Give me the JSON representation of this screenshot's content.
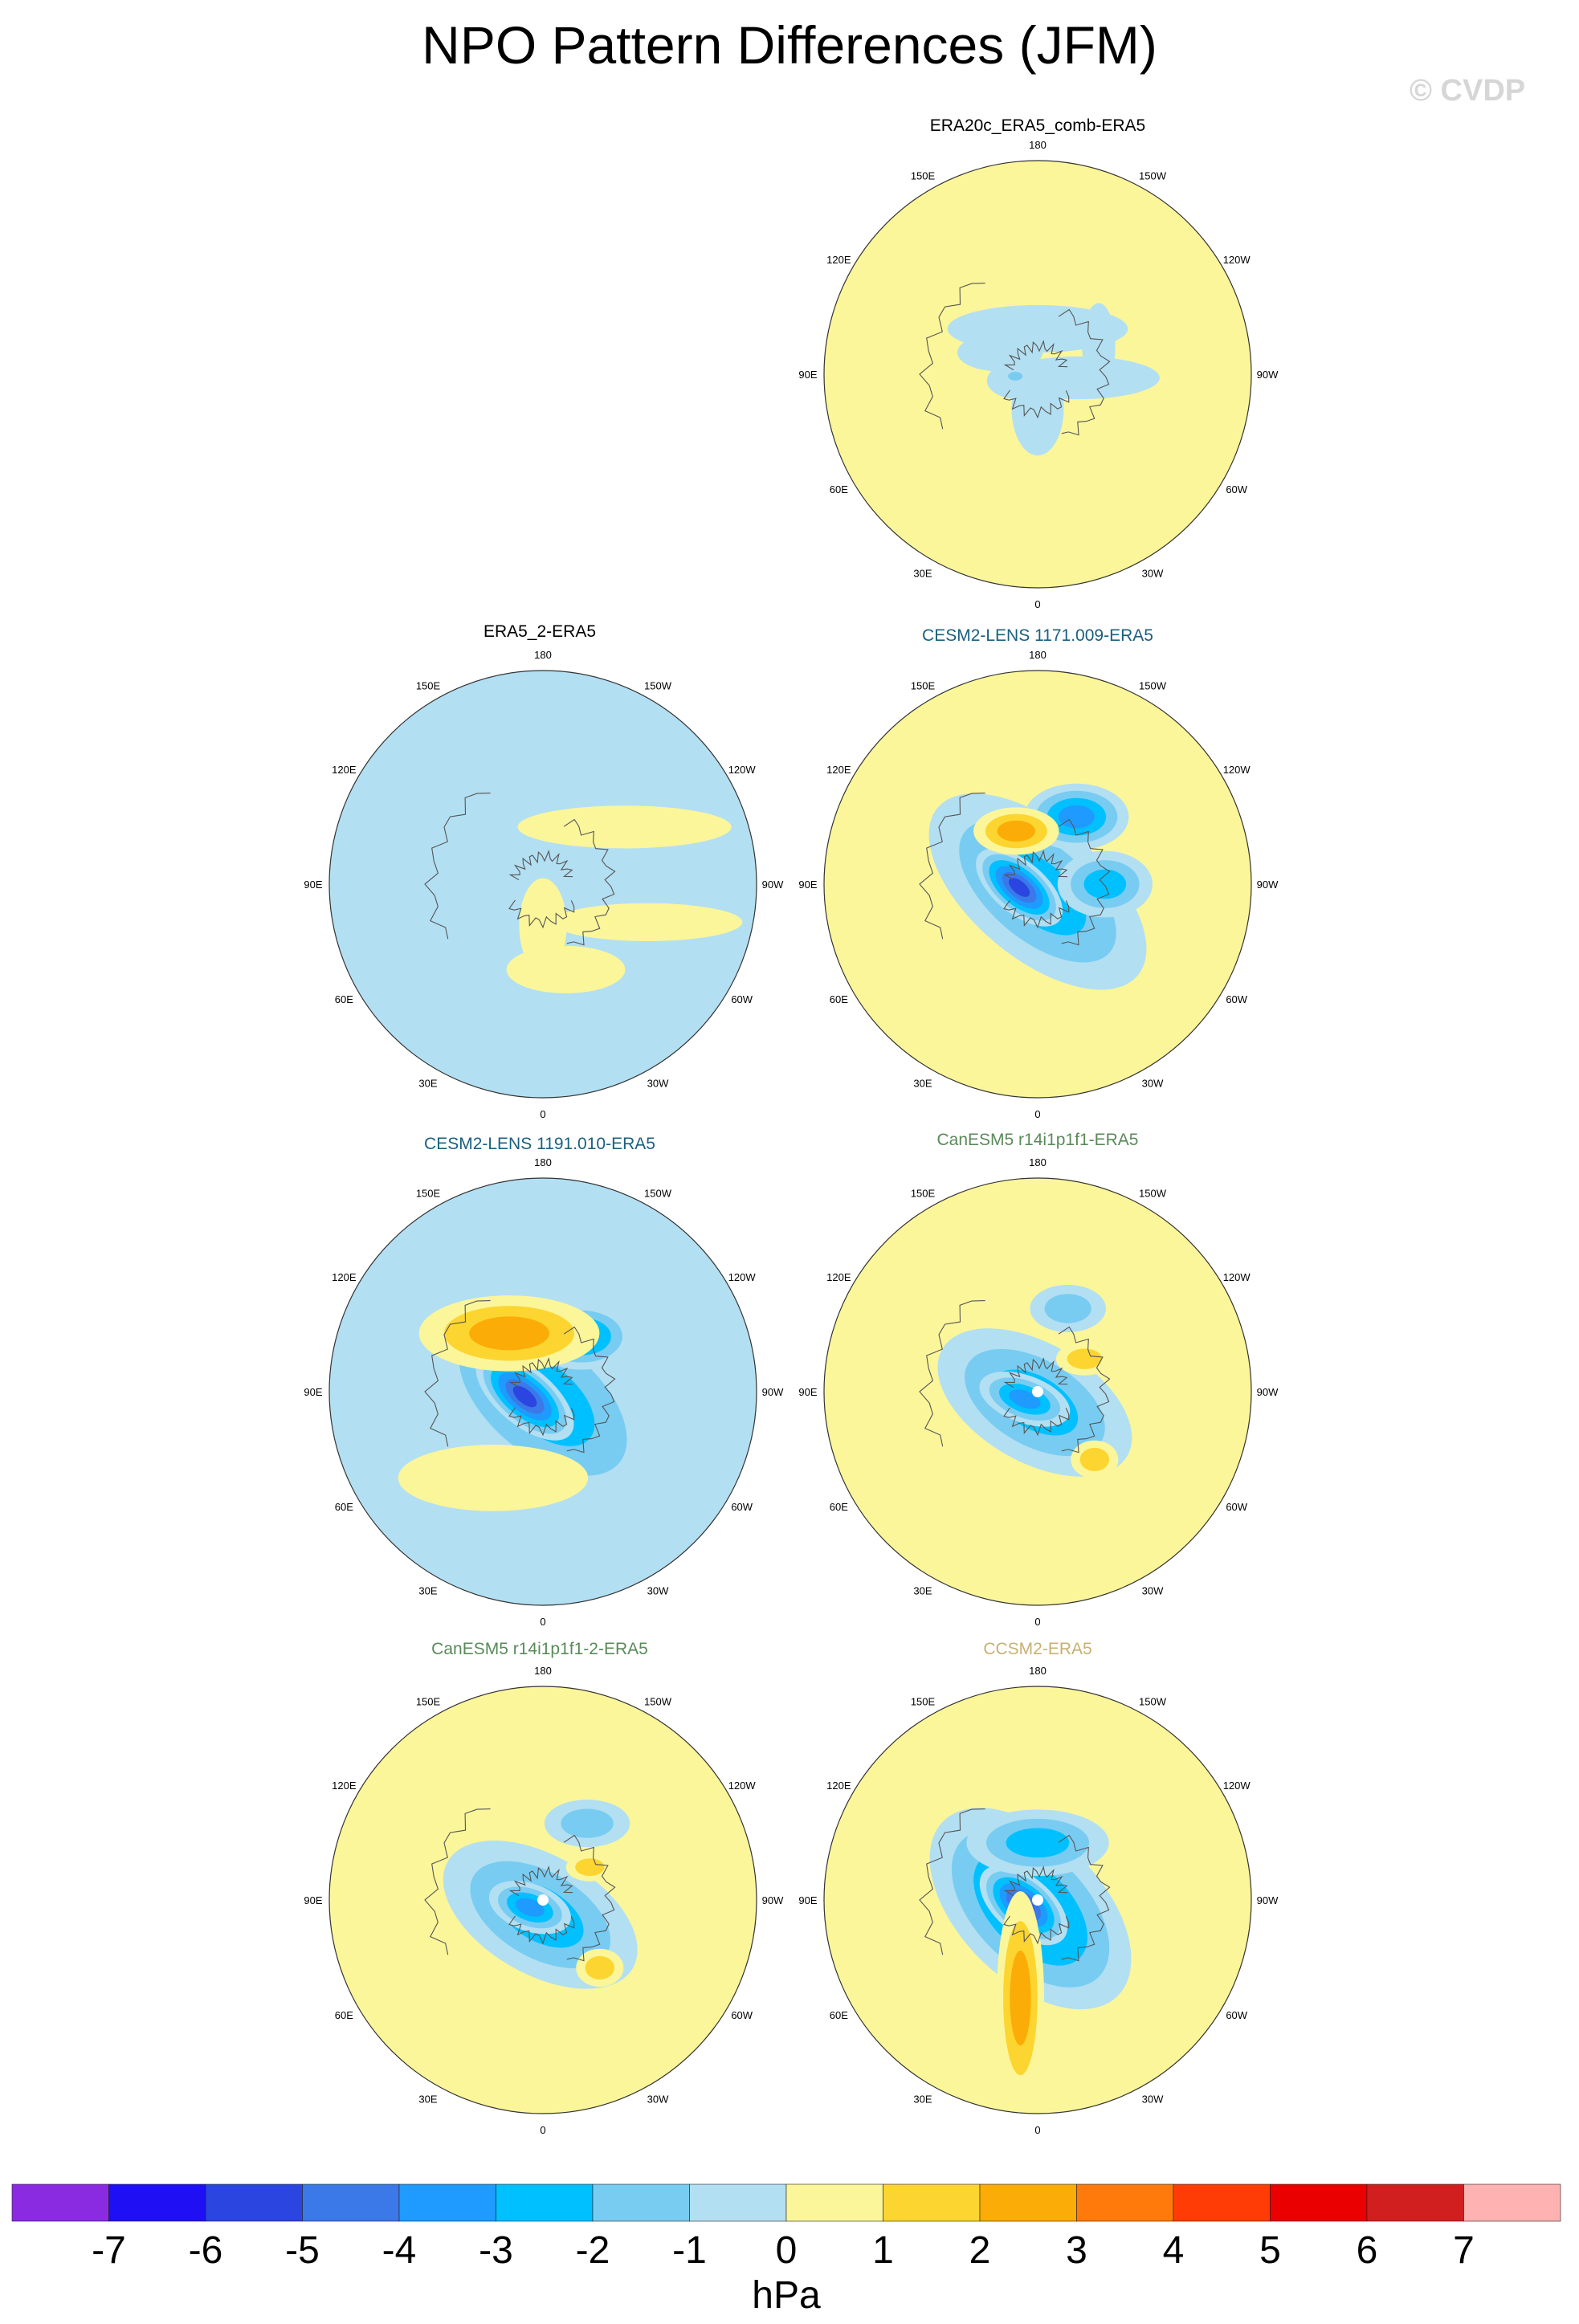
{
  "title": "NPO Pattern Differences (JFM)",
  "watermark": "© CVDP",
  "lon_labels": [
    "180",
    "150E",
    "120E",
    "90E",
    "60E",
    "30E",
    "0",
    "30W",
    "60W",
    "90W",
    "120W",
    "150W"
  ],
  "colorbar": {
    "unit": "hPa",
    "tick_labels": [
      "-7",
      "-6",
      "-5",
      "-4",
      "-3",
      "-2",
      "-1",
      "0",
      "1",
      "2",
      "3",
      "4",
      "5",
      "6",
      "7"
    ],
    "colors": [
      "#8a2be2",
      "#1e0ff5",
      "#2a45e0",
      "#3b78e8",
      "#1f9aff",
      "#00c0ff",
      "#78ccf2",
      "#b3dff2",
      "#fbf69a",
      "#fcd530",
      "#fcac06",
      "#ff7a0a",
      "#ff3c06",
      "#ea0000",
      "#d11f1f",
      "#ffb2b2"
    ]
  },
  "chart_data": {
    "type": "polar-contour-maps",
    "projection": "north polar stereographic",
    "unit": "hPa",
    "contour_levels": [
      -7,
      -6,
      -5,
      -4,
      -3,
      -2,
      -1,
      0,
      1,
      2,
      3,
      4,
      5,
      6,
      7
    ],
    "panels": [
      {
        "title": "ERA20c_ERA5_comb-ERA5",
        "title_color": "#000000",
        "background_level": 0.5,
        "blobs": [
          {
            "lon": 180,
            "colat": 24,
            "a": 38,
            "b": 10,
            "rot": 0,
            "v": -0.5
          },
          {
            "lon": 120,
            "colat": 23,
            "a": 18,
            "b": 8,
            "rot": 0,
            "v": -0.5
          },
          {
            "lon": 70,
            "colat": 10,
            "a": 14,
            "b": 8,
            "rot": 0,
            "v": -0.5
          },
          {
            "lon": 0,
            "colat": 18,
            "a": 20,
            "b": 11,
            "rot": 90,
            "v": -0.5
          },
          {
            "lon": 275,
            "colat": 22,
            "a": 34,
            "b": 9,
            "rot": 0,
            "v": -0.5
          },
          {
            "lon": 245,
            "colat": 35,
            "a": 18,
            "b": 7,
            "rot": 90,
            "v": -0.5
          },
          {
            "lon": 85,
            "colat": 12,
            "a": 5,
            "b": 3,
            "rot": 0,
            "v": -1.5
          }
        ]
      },
      {
        "title": "ERA5_2-ERA5",
        "title_color": "#000000",
        "background_level": -0.5,
        "blobs": [
          {
            "lon": 0,
            "colat": 22,
            "a": 20,
            "b": 10,
            "rot": 90,
            "v": 0.5
          },
          {
            "lon": 235,
            "colat": 50,
            "a": 45,
            "b": 9,
            "rot": 0,
            "v": 0.5
          },
          {
            "lon": 290,
            "colat": 55,
            "a": 40,
            "b": 8,
            "rot": 0,
            "v": 0.5
          },
          {
            "lon": 345,
            "colat": 45,
            "a": 25,
            "b": 10,
            "rot": 0,
            "v": 0.5
          }
        ]
      },
      {
        "title": "CESM2-LENS 1171.009-ERA5",
        "title_color": "#1a6080",
        "background_level": 0.5,
        "blobs": [
          {
            "lon": 0,
            "colat": 4,
            "a": 55,
            "b": 28,
            "rot": 40,
            "v": -2.5
          },
          {
            "lon": 80,
            "colat": 10,
            "a": 22,
            "b": 11,
            "rot": 40,
            "v": -5.5
          },
          {
            "lon": 210,
            "colat": 40,
            "a": 22,
            "b": 14,
            "rot": 0,
            "v": -3.5
          },
          {
            "lon": 270,
            "colat": 35,
            "a": 20,
            "b": 14,
            "rot": 0,
            "v": -2.5
          },
          {
            "lon": 158,
            "colat": 30,
            "a": 18,
            "b": 10,
            "rot": 0,
            "v": 2.0
          }
        ]
      },
      {
        "title": "CESM2-LENS 1191.010-ERA5",
        "title_color": "#1a6080",
        "background_level": -0.5,
        "blobs": [
          {
            "lon": 0,
            "colat": 4,
            "a": 58,
            "b": 32,
            "rot": 40,
            "v": -2.5
          },
          {
            "lon": 75,
            "colat": 10,
            "a": 25,
            "b": 12,
            "rot": 40,
            "v": -5.5
          },
          {
            "lon": 215,
            "colat": 35,
            "a": 22,
            "b": 14,
            "rot": 0,
            "v": -3.5
          },
          {
            "lon": 150,
            "colat": 35,
            "a": 38,
            "b": 16,
            "rot": 0,
            "v": 2.5
          },
          {
            "lon": 30,
            "colat": 50,
            "a": 40,
            "b": 14,
            "rot": 0,
            "v": 0.5
          }
        ]
      },
      {
        "title": "CanESM5 r14i1p1f1-ERA5",
        "title_color": "#5a8a5a",
        "background_level": 0.5,
        "blobs": [
          {
            "lon": 15,
            "colat": 6,
            "a": 45,
            "b": 25,
            "rot": 30,
            "v": -2.0
          },
          {
            "lon": 60,
            "colat": 8,
            "a": 20,
            "b": 10,
            "rot": 20,
            "v": -3.5
          },
          {
            "lon": 200,
            "colat": 45,
            "a": 16,
            "b": 10,
            "rot": 0,
            "v": -1.5
          },
          {
            "lon": 235,
            "colat": 30,
            "a": 12,
            "b": 7,
            "rot": 0,
            "v": 1.5
          },
          {
            "lon": 320,
            "colat": 45,
            "a": 10,
            "b": 8,
            "rot": 0,
            "v": 1.5
          }
        ],
        "center_dot": true
      },
      {
        "title": "CanESM5 r14i1p1f1-2-ERA5",
        "title_color": "#5a8a5a",
        "background_level": 0.5,
        "blobs": [
          {
            "lon": 10,
            "colat": 8,
            "a": 45,
            "b": 25,
            "rot": 30,
            "v": -2.0
          },
          {
            "lon": 60,
            "colat": 8,
            "a": 18,
            "b": 10,
            "rot": 20,
            "v": -3.5
          },
          {
            "lon": 210,
            "colat": 45,
            "a": 18,
            "b": 10,
            "rot": 0,
            "v": -1.5
          },
          {
            "lon": 235,
            "colat": 30,
            "a": 10,
            "b": 6,
            "rot": 0,
            "v": 1.5
          },
          {
            "lon": 320,
            "colat": 45,
            "a": 10,
            "b": 8,
            "rot": 0,
            "v": 1.5
          }
        ],
        "center_dot": true
      },
      {
        "title": "CCSM2-ERA5",
        "title_color": "#c8b070",
        "background_level": 0.5,
        "blobs": [
          {
            "lon": 40,
            "colat": 6,
            "a": 52,
            "b": 30,
            "rot": 45,
            "v": -3.0
          },
          {
            "lon": 70,
            "colat": 8,
            "a": 22,
            "b": 12,
            "rot": 40,
            "v": -5.0
          },
          {
            "lon": 180,
            "colat": 30,
            "a": 30,
            "b": 14,
            "rot": 0,
            "v": -2.5
          },
          {
            "lon": 10,
            "colat": 50,
            "a": 45,
            "b": 10,
            "rot": 90,
            "v": 2.0
          }
        ],
        "center_dot": true
      }
    ]
  }
}
